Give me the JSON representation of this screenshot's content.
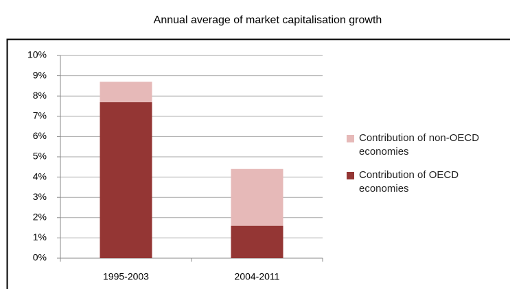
{
  "chart_data": {
    "type": "bar",
    "stacked": true,
    "title": "Annual average of market capitalisation growth",
    "categories": [
      "1995-2003",
      "2004-2011"
    ],
    "series": [
      {
        "name": "Contribution of OECD economies",
        "color": "#943634",
        "values": [
          7.7,
          1.6
        ]
      },
      {
        "name": "Contribution of non-OECD economies",
        "color": "#e6b9b8",
        "values": [
          1.0,
          2.8
        ]
      }
    ],
    "ylim": [
      0,
      10
    ],
    "yticks": [
      {
        "value": 0,
        "label": "0%"
      },
      {
        "value": 1,
        "label": "1%"
      },
      {
        "value": 2,
        "label": "2%"
      },
      {
        "value": 3,
        "label": "3%"
      },
      {
        "value": 4,
        "label": "4%"
      },
      {
        "value": 5,
        "label": "5%"
      },
      {
        "value": 6,
        "label": "6%"
      },
      {
        "value": 7,
        "label": "7%"
      },
      {
        "value": 8,
        "label": "8%"
      },
      {
        "value": 9,
        "label": "9%"
      },
      {
        "value": 10,
        "label": "10%"
      }
    ],
    "grid": true,
    "legend": "right"
  }
}
